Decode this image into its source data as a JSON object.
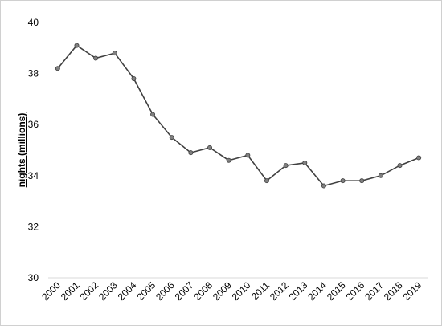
{
  "chart_data": {
    "type": "line",
    "y_label": "nights (millions)",
    "categories": [
      "2000",
      "2001",
      "2002",
      "2003",
      "2004",
      "2005",
      "2006",
      "2007",
      "2008",
      "2009",
      "2010",
      "2011",
      "2012",
      "2013",
      "2014",
      "2015",
      "2016",
      "2017",
      "2018",
      "2019"
    ],
    "values": [
      38.2,
      39.1,
      38.6,
      38.8,
      37.8,
      36.4,
      35.5,
      34.9,
      35.1,
      34.6,
      34.8,
      33.8,
      34.4,
      34.5,
      33.6,
      33.8,
      33.8,
      34.0,
      34.4,
      34.7
    ],
    "color": "#404040",
    "marker_color": "#808080",
    "ylim": [
      30,
      40
    ],
    "yticks": [
      30,
      32,
      34,
      36,
      38,
      40
    ],
    "grid": false
  }
}
